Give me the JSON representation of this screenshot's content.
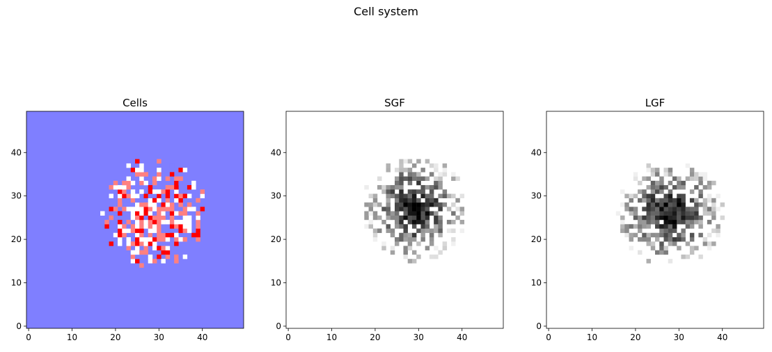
{
  "figure": {
    "suptitle": "Cell system"
  },
  "colors": {
    "empty": "#7f7fff",
    "white": "#ffffff",
    "light_red": "#ff8080",
    "red": "#ff0000"
  },
  "chart_data": [
    {
      "type": "heatmap",
      "title": "Cells",
      "colormap": "bwr",
      "background_value": 0,
      "grid_size": [
        50,
        50
      ],
      "xlim": [
        -0.5,
        49.5
      ],
      "ylim": [
        -0.5,
        49.5
      ],
      "origin": "lower",
      "xticks": [
        0,
        10,
        20,
        30,
        40
      ],
      "yticks": [
        0,
        10,
        20,
        30,
        40
      ],
      "cluster_center": [
        29,
        26
      ],
      "cluster_extent": {
        "x": [
          17,
          40
        ],
        "y": [
          13,
          38
        ]
      },
      "states": [
        "empty",
        "white",
        "light_red",
        "red"
      ]
    },
    {
      "type": "heatmap",
      "title": "SGF",
      "colormap": "Greys",
      "grid_size": [
        50,
        50
      ],
      "xlim": [
        -0.5,
        49.5
      ],
      "ylim": [
        -0.5,
        49.5
      ],
      "origin": "lower",
      "xticks": [
        0,
        10,
        20,
        30,
        40
      ],
      "yticks": [
        0,
        10,
        20,
        30,
        40
      ],
      "cluster_center": [
        29,
        27
      ],
      "cluster_extent": {
        "x": [
          17,
          40
        ],
        "y": [
          14,
          38
        ]
      }
    },
    {
      "type": "heatmap",
      "title": "LGF",
      "colormap": "Greys",
      "grid_size": [
        50,
        50
      ],
      "xlim": [
        -0.5,
        49.5
      ],
      "ylim": [
        -0.5,
        49.5
      ],
      "origin": "lower",
      "xticks": [
        0,
        10,
        20,
        30,
        40
      ],
      "yticks": [
        0,
        10,
        20,
        30,
        40
      ],
      "cluster_center": [
        28,
        26
      ],
      "cluster_extent": {
        "x": [
          16,
          40
        ],
        "y": [
          14,
          37
        ]
      }
    }
  ]
}
